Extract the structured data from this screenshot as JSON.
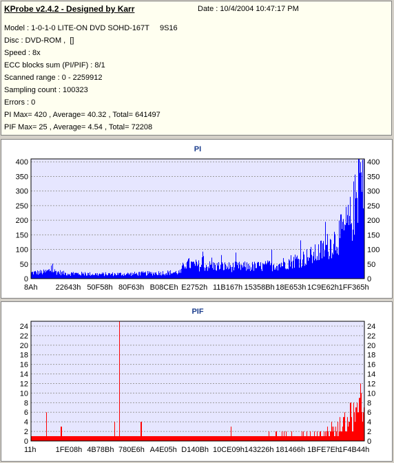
{
  "header": {
    "title": "KProbe v2.4.2 - Designed by Karr",
    "date": "Date : 10/4/2004 10:47:17 PM",
    "lines": [
      "Model : 1-0-1-0 LITE-ON DVD SOHD-167T     9S16",
      "Disc : DVD-ROM ,  []",
      "Speed : 8x",
      "ECC blocks sum (PI/PIF) : 8/1",
      "Scanned range : 0 - 2259912",
      "Sampling count : 100323",
      "Errors : 0",
      "PI Max= 420 , Average= 40.32 , Total= 641497",
      "PIF Max= 25 , Average= 4.54 , Total= 72208"
    ]
  },
  "colors": {
    "pi": "#0000ff",
    "pif": "#ff0000",
    "plot_bg": "#e6e6ff"
  },
  "chart_data": [
    {
      "type": "area",
      "title": "PI",
      "ylim": [
        0,
        410
      ],
      "yticks": [
        0,
        50,
        100,
        150,
        200,
        250,
        300,
        350,
        400
      ],
      "xtick_labels": [
        "8Ah",
        "22643h",
        "50F58h",
        "80F63h",
        "B08CEh",
        "E2752h",
        "11B167h",
        "15358Bh",
        "18E653h",
        "1C9E62h",
        "1FF365h"
      ],
      "grid": true,
      "profile": {
        "x_fraction": [
          0,
          0.04,
          0.06,
          0.07,
          0.1,
          0.2,
          0.3,
          0.4,
          0.45,
          0.46,
          0.5,
          0.6,
          0.7,
          0.75,
          0.8,
          0.85,
          0.88,
          0.9,
          0.92,
          0.94,
          0.96,
          0.97,
          0.98,
          0.99,
          1.0
        ],
        "y": [
          20,
          22,
          30,
          25,
          18,
          15,
          16,
          20,
          22,
          52,
          45,
          40,
          42,
          50,
          65,
          80,
          100,
          120,
          140,
          165,
          200,
          240,
          290,
          320,
          330
        ]
      },
      "peaks": {
        "max": 420
      }
    },
    {
      "type": "bar",
      "title": "PIF",
      "ylim": [
        0,
        25
      ],
      "yticks": [
        0,
        2,
        4,
        6,
        8,
        10,
        12,
        14,
        16,
        18,
        20,
        22,
        24
      ],
      "xtick_labels": [
        "11h",
        "1FE08h",
        "4B78Bh",
        "780E6h",
        "A4E05h",
        "D140Bh",
        "10CE09h",
        "143226h",
        "181466h",
        "1BFE7Eh",
        "1F4B44h"
      ],
      "grid": true,
      "profile": {
        "x_fraction": [
          0,
          0.3,
          0.5,
          0.7,
          0.85,
          0.9,
          0.95,
          0.98,
          1.0
        ],
        "y": [
          1,
          1,
          1,
          1,
          1.5,
          2,
          3,
          5,
          8
        ]
      },
      "spikes": [
        {
          "x_fraction": 0.045,
          "y": 6
        },
        {
          "x_fraction": 0.09,
          "y": 3
        },
        {
          "x_fraction": 0.25,
          "y": 4
        },
        {
          "x_fraction": 0.265,
          "y": 25
        },
        {
          "x_fraction": 0.33,
          "y": 4
        },
        {
          "x_fraction": 0.6,
          "y": 3
        },
        {
          "x_fraction": 0.96,
          "y": 8
        },
        {
          "x_fraction": 0.99,
          "y": 12
        }
      ]
    }
  ]
}
